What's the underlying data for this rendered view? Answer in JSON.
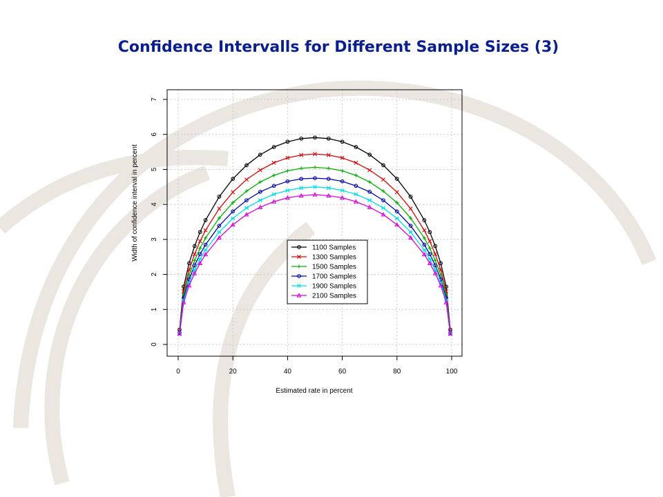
{
  "slide": {
    "title": "Confidence Intervalls for Different Sample Sizes (3)"
  },
  "colors": {
    "title": "#0a1f8f",
    "background_globe": "#ebe6df"
  },
  "chart_data": {
    "type": "line",
    "title": "",
    "xlabel": "Estimated rate in percent",
    "ylabel": "Width of confidence interval in percent",
    "xlim": [
      0,
      100
    ],
    "ylim": [
      0,
      7
    ],
    "xticks": [
      0,
      20,
      40,
      60,
      80,
      100
    ],
    "yticks": [
      0,
      1,
      2,
      3,
      4,
      5,
      6,
      7
    ],
    "grid": true,
    "legend_position": "center",
    "x": [
      0.5,
      2,
      4,
      6,
      8,
      10,
      15,
      20,
      25,
      30,
      35,
      40,
      45,
      50,
      55,
      60,
      65,
      70,
      75,
      80,
      85,
      90,
      92,
      94,
      96,
      98,
      99.5
    ],
    "series": [
      {
        "name": "1100 Samples",
        "color": "#000000",
        "marker": "circle",
        "values": [
          0.42,
          1.65,
          2.32,
          2.81,
          3.21,
          3.55,
          4.22,
          4.73,
          5.12,
          5.42,
          5.64,
          5.79,
          5.88,
          5.91,
          5.88,
          5.79,
          5.64,
          5.42,
          5.12,
          4.73,
          4.22,
          3.55,
          3.21,
          2.81,
          2.32,
          1.65,
          0.42
        ]
      },
      {
        "name": "1300 Samples",
        "color": "#dd0000",
        "marker": "x",
        "values": [
          0.38,
          1.52,
          2.13,
          2.58,
          2.95,
          3.26,
          3.88,
          4.35,
          4.71,
          4.98,
          5.19,
          5.33,
          5.41,
          5.44,
          5.41,
          5.33,
          5.19,
          4.98,
          4.71,
          4.35,
          3.88,
          3.26,
          2.95,
          2.58,
          2.13,
          1.52,
          0.38
        ]
      },
      {
        "name": "1500 Samples",
        "color": "#00b000",
        "marker": "plus",
        "values": [
          0.36,
          1.42,
          1.98,
          2.4,
          2.75,
          3.04,
          3.61,
          4.05,
          4.38,
          4.64,
          4.83,
          4.96,
          5.03,
          5.06,
          5.03,
          4.96,
          4.83,
          4.64,
          4.38,
          4.05,
          3.61,
          3.04,
          2.75,
          2.4,
          1.98,
          1.42,
          0.36
        ]
      },
      {
        "name": "1700 Samples",
        "color": "#0000b0",
        "marker": "circle",
        "values": [
          0.33,
          1.33,
          1.86,
          2.26,
          2.58,
          2.85,
          3.39,
          3.8,
          4.12,
          4.36,
          4.53,
          4.66,
          4.73,
          4.75,
          4.73,
          4.66,
          4.53,
          4.36,
          4.12,
          3.8,
          3.39,
          2.85,
          2.58,
          2.26,
          1.86,
          1.33,
          0.33
        ]
      },
      {
        "name": "1900 Samples",
        "color": "#00e0e8",
        "marker": "star",
        "values": [
          0.32,
          1.26,
          1.76,
          2.13,
          2.44,
          2.7,
          3.21,
          3.6,
          3.9,
          4.12,
          4.29,
          4.4,
          4.47,
          4.5,
          4.47,
          4.4,
          4.29,
          4.12,
          3.9,
          3.6,
          3.21,
          2.7,
          2.44,
          2.13,
          1.76,
          1.26,
          0.32
        ]
      },
      {
        "name": "2100 Samples",
        "color": "#dd00dd",
        "marker": "triangle",
        "values": [
          0.3,
          1.2,
          1.68,
          2.03,
          2.32,
          2.57,
          3.05,
          3.42,
          3.71,
          3.92,
          4.08,
          4.19,
          4.25,
          4.28,
          4.25,
          4.19,
          4.08,
          3.92,
          3.71,
          3.42,
          3.05,
          2.57,
          2.32,
          2.03,
          1.68,
          1.2,
          0.3
        ]
      }
    ]
  }
}
